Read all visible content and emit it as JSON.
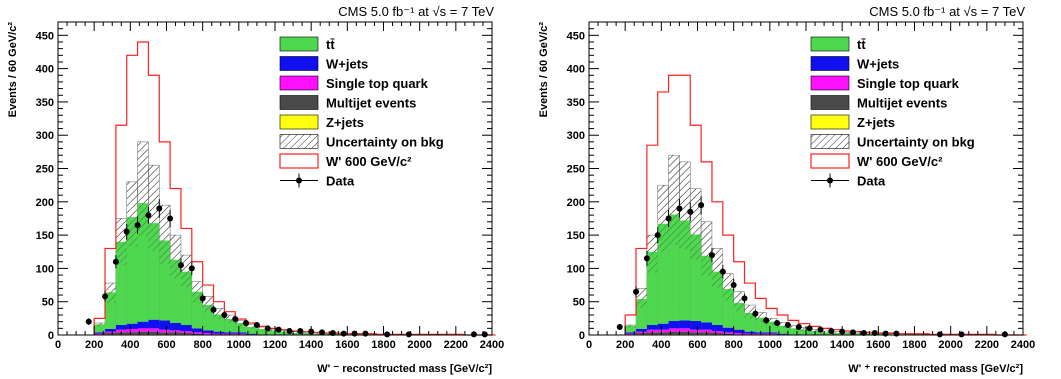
{
  "colors": {
    "ttbar": "#4fd84f",
    "wjets": "#1010f0",
    "singletop": "#ff10ff",
    "multijet": "#4a4a4a",
    "zjets": "#ffff10",
    "signal": "#ff2020",
    "data": "#000000"
  },
  "legend": {
    "ttbar": "tt̄",
    "wjets": "W+jets",
    "singletop": "Single top quark",
    "multijet": "Multijet events",
    "zjets": "Z+jets",
    "uncertainty": "Uncertainty on bkg",
    "signal": "W' 600 GeV/c²",
    "data": "Data"
  },
  "chart_data": [
    {
      "type": "bar",
      "cms_label": "CMS 5.0 fb⁻¹ at √s  =  7 TeV",
      "xlabel": "W' ⁻ reconstructed mass [GeV/c²]",
      "ylabel": "Events / 60 GeV/c²",
      "xlim": [
        0,
        2400
      ],
      "ylim": [
        0,
        470
      ],
      "bin_width": 60,
      "bin_start": 200,
      "xticks": [
        0,
        200,
        400,
        600,
        800,
        1000,
        1200,
        1400,
        1600,
        1800,
        2000,
        2200,
        2400
      ],
      "yticks": [
        0,
        50,
        100,
        150,
        200,
        250,
        300,
        350,
        400,
        450
      ],
      "series": [
        {
          "name": "tt̄",
          "key": "ttbar",
          "values": [
            12,
            55,
            125,
            160,
            178,
            145,
            120,
            95,
            80,
            55,
            38,
            26,
            20,
            14,
            10,
            8,
            6,
            4,
            3,
            3,
            2,
            2,
            2,
            1,
            1,
            1,
            1,
            1,
            1,
            0,
            0,
            0,
            0,
            0,
            0,
            0,
            0
          ]
        },
        {
          "name": "W+jets",
          "key": "wjets",
          "values": [
            2,
            4,
            7,
            8,
            10,
            13,
            14,
            11,
            9,
            6,
            4,
            3,
            2,
            2,
            1,
            1,
            1,
            1,
            0,
            0,
            0,
            0,
            0,
            0,
            0,
            0,
            0,
            0,
            0,
            0,
            0,
            0,
            0,
            0,
            0,
            0,
            0
          ]
        },
        {
          "name": "Single top quark",
          "key": "singletop",
          "values": [
            1,
            2,
            4,
            5,
            5,
            5,
            4,
            3,
            3,
            2,
            2,
            1,
            1,
            1,
            1,
            0,
            0,
            0,
            0,
            0,
            0,
            0,
            0,
            0,
            0,
            0,
            0,
            0,
            0,
            0,
            0,
            0,
            0,
            0,
            0,
            0,
            0
          ]
        },
        {
          "name": "Multijet events",
          "key": "multijet",
          "values": [
            1,
            2,
            3,
            3,
            4,
            4,
            3,
            3,
            2,
            2,
            1,
            1,
            1,
            1,
            0,
            0,
            0,
            0,
            0,
            0,
            0,
            0,
            0,
            0,
            0,
            0,
            0,
            0,
            0,
            0,
            0,
            0,
            0,
            0,
            0,
            0,
            0
          ]
        },
        {
          "name": "Z+jets",
          "key": "zjets",
          "values": [
            0,
            1,
            1,
            1,
            1,
            1,
            1,
            1,
            1,
            0,
            0,
            0,
            0,
            0,
            0,
            0,
            0,
            0,
            0,
            0,
            0,
            0,
            0,
            0,
            0,
            0,
            0,
            0,
            0,
            0,
            0,
            0,
            0,
            0,
            0,
            0,
            0
          ]
        }
      ],
      "uncertainty_total": [
        18,
        78,
        175,
        230,
        290,
        255,
        195,
        150,
        120,
        80,
        58,
        40,
        30,
        22,
        16,
        12,
        9,
        7,
        5,
        4,
        3,
        3,
        2,
        2,
        2,
        1,
        1,
        1,
        1,
        1,
        1,
        1,
        1,
        1,
        0,
        0,
        0
      ],
      "signal": [
        25,
        130,
        315,
        420,
        440,
        390,
        290,
        220,
        160,
        110,
        75,
        50,
        35,
        24,
        18,
        13,
        10,
        8,
        6,
        5,
        4,
        3,
        3,
        2,
        2,
        2,
        1,
        1,
        1,
        1,
        1,
        1,
        1,
        1,
        0,
        0,
        0
      ],
      "data": {
        "x": [
          170,
          260,
          320,
          380,
          440,
          500,
          560,
          620,
          680,
          740,
          800,
          860,
          920,
          980,
          1040,
          1100,
          1160,
          1220,
          1280,
          1340,
          1400,
          1460,
          1520,
          1580,
          1640,
          1700,
          1820,
          1940,
          2300,
          2360
        ],
        "y": [
          20,
          58,
          110,
          155,
          165,
          180,
          190,
          175,
          105,
          100,
          55,
          38,
          30,
          24,
          18,
          15,
          10,
          8,
          6,
          6,
          5,
          4,
          3,
          2,
          2,
          2,
          1,
          1,
          1,
          1
        ],
        "err": [
          5,
          8,
          10,
          12,
          13,
          13,
          14,
          13,
          10,
          10,
          7,
          6,
          5,
          5,
          4,
          4,
          3,
          3,
          2,
          2,
          2,
          2,
          2,
          1,
          1,
          1,
          1,
          1,
          1,
          1
        ]
      }
    },
    {
      "type": "bar",
      "cms_label": "CMS 5.0 fb⁻¹ at √s  =  7 TeV",
      "xlabel": "W' ⁺ reconstructed mass [GeV/c²]",
      "ylabel": "Events / 60 GeV/c²",
      "xlim": [
        0,
        2400
      ],
      "ylim": [
        0,
        470
      ],
      "bin_width": 60,
      "bin_start": 200,
      "xticks": [
        0,
        200,
        400,
        600,
        800,
        1000,
        1200,
        1400,
        1600,
        1800,
        2000,
        2200,
        2400
      ],
      "yticks": [
        0,
        50,
        100,
        150,
        200,
        250,
        300,
        350,
        400,
        450
      ],
      "series": [
        {
          "name": "tt̄",
          "key": "ttbar",
          "values": [
            10,
            45,
            110,
            150,
            160,
            150,
            130,
            100,
            80,
            58,
            40,
            28,
            22,
            16,
            12,
            9,
            7,
            5,
            4,
            3,
            3,
            2,
            2,
            2,
            1,
            1,
            1,
            1,
            1,
            0,
            0,
            0,
            0,
            0,
            0,
            0,
            0
          ]
        },
        {
          "name": "W+jets",
          "key": "wjets",
          "values": [
            2,
            4,
            7,
            9,
            11,
            12,
            13,
            11,
            9,
            7,
            5,
            3,
            2,
            2,
            1,
            1,
            1,
            1,
            0,
            0,
            0,
            0,
            0,
            0,
            0,
            0,
            0,
            0,
            0,
            0,
            0,
            0,
            0,
            0,
            0,
            0,
            0
          ]
        },
        {
          "name": "Single top quark",
          "key": "singletop",
          "values": [
            1,
            2,
            4,
            4,
            5,
            5,
            4,
            4,
            3,
            2,
            2,
            1,
            1,
            1,
            1,
            0,
            0,
            0,
            0,
            0,
            0,
            0,
            0,
            0,
            0,
            0,
            0,
            0,
            0,
            0,
            0,
            0,
            0,
            0,
            0,
            0,
            0
          ]
        },
        {
          "name": "Multijet events",
          "key": "multijet",
          "values": [
            1,
            2,
            3,
            3,
            4,
            4,
            3,
            3,
            2,
            2,
            1,
            1,
            1,
            1,
            0,
            0,
            0,
            0,
            0,
            0,
            0,
            0,
            0,
            0,
            0,
            0,
            0,
            0,
            0,
            0,
            0,
            0,
            0,
            0,
            0,
            0,
            0
          ]
        },
        {
          "name": "Z+jets",
          "key": "zjets",
          "values": [
            0,
            1,
            1,
            1,
            1,
            1,
            1,
            1,
            1,
            0,
            0,
            0,
            0,
            0,
            0,
            0,
            0,
            0,
            0,
            0,
            0,
            0,
            0,
            0,
            0,
            0,
            0,
            0,
            0,
            0,
            0,
            0,
            0,
            0,
            0,
            0,
            0
          ]
        }
      ],
      "uncertainty_total": [
        15,
        70,
        150,
        225,
        270,
        260,
        220,
        170,
        130,
        92,
        65,
        45,
        34,
        25,
        19,
        14,
        11,
        8,
        6,
        5,
        4,
        3,
        3,
        2,
        2,
        2,
        1,
        1,
        1,
        1,
        1,
        1,
        1,
        1,
        0,
        0,
        0
      ],
      "signal": [
        30,
        130,
        285,
        365,
        390,
        390,
        315,
        260,
        200,
        150,
        110,
        78,
        55,
        40,
        30,
        22,
        17,
        13,
        10,
        8,
        6,
        5,
        4,
        3,
        3,
        2,
        2,
        2,
        1,
        1,
        1,
        1,
        1,
        1,
        0,
        0,
        0
      ],
      "data": {
        "x": [
          170,
          260,
          320,
          380,
          440,
          500,
          560,
          620,
          680,
          740,
          800,
          860,
          920,
          980,
          1040,
          1100,
          1160,
          1220,
          1280,
          1340,
          1400,
          1460,
          1520,
          1580,
          1640,
          1700,
          1940,
          2060,
          2300
        ],
        "y": [
          12,
          65,
          115,
          150,
          175,
          190,
          185,
          195,
          120,
          95,
          75,
          55,
          32,
          22,
          18,
          15,
          12,
          10,
          8,
          6,
          5,
          4,
          3,
          3,
          2,
          2,
          1,
          1,
          1
        ],
        "err": [
          4,
          8,
          11,
          12,
          13,
          14,
          14,
          14,
          11,
          10,
          9,
          7,
          6,
          5,
          4,
          4,
          3,
          3,
          3,
          2,
          2,
          2,
          2,
          2,
          1,
          1,
          1,
          1,
          1
        ]
      }
    }
  ]
}
